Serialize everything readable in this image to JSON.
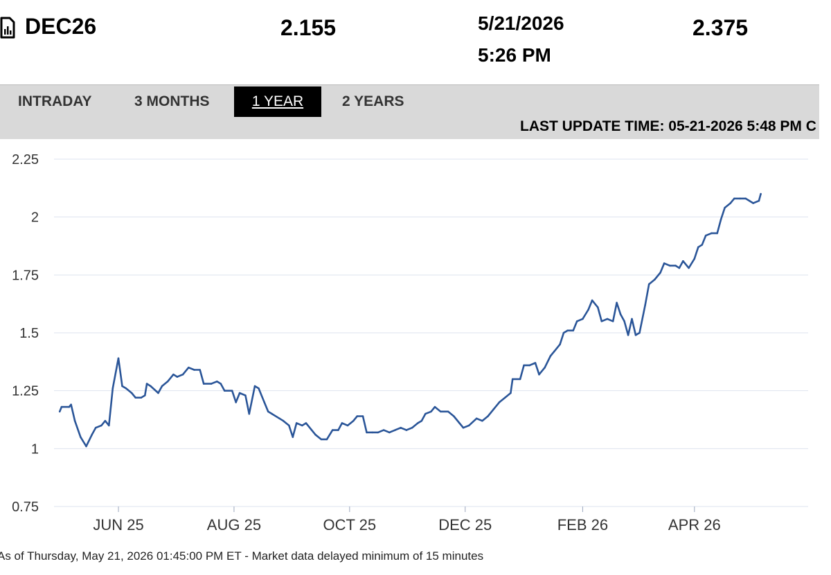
{
  "quote": {
    "symbol": "DEC26",
    "last": "2.155",
    "date": "5/21/2026",
    "time": "5:26 PM",
    "change": "2.375"
  },
  "tabs": [
    {
      "label": "INTRADAY",
      "active": false
    },
    {
      "label": "3 MONTHS",
      "active": false
    },
    {
      "label": "1 YEAR",
      "active": true
    },
    {
      "label": "2 YEARS",
      "active": false
    }
  ],
  "last_update": "LAST UPDATE TIME: 05-21-2026 5:48 PM C",
  "footnote": "As of Thursday, May 21, 2026 01:45:00 PM ET - Market data delayed minimum of 15 minutes",
  "colors": {
    "line": "#2a5598",
    "grid": "#dde3ef",
    "active_tab": "#000000",
    "tabbar": "#d9d9d9"
  },
  "chart_data": {
    "type": "line",
    "grid": true,
    "ylim": [
      0.75,
      2.25
    ],
    "yticks": [
      0.75,
      1,
      1.25,
      1.5,
      1.75,
      2,
      2.25
    ],
    "ytick_labels": [
      "0.75",
      "1",
      "1.25",
      "1.5",
      "1.75",
      "2",
      "2.25"
    ],
    "xlim": [
      "2025-04-28",
      "2026-05-31"
    ],
    "xticks": [
      "2025-06-01",
      "2025-08-01",
      "2025-10-01",
      "2025-12-01",
      "2026-02-01",
      "2026-04-01"
    ],
    "xtick_labels": [
      "JUN 25",
      "AUG 25",
      "OCT 25",
      "DEC 25",
      "FEB 26",
      "APR 26"
    ],
    "series": [
      {
        "points": [
          [
            "2025-05-01",
            1.16
          ],
          [
            "2025-05-02",
            1.18
          ],
          [
            "2025-05-06",
            1.18
          ],
          [
            "2025-05-07",
            1.19
          ],
          [
            "2025-05-09",
            1.12
          ],
          [
            "2025-05-12",
            1.05
          ],
          [
            "2025-05-15",
            1.01
          ],
          [
            "2025-05-18",
            1.06
          ],
          [
            "2025-05-20",
            1.09
          ],
          [
            "2025-05-23",
            1.1
          ],
          [
            "2025-05-25",
            1.12
          ],
          [
            "2025-05-27",
            1.1
          ],
          [
            "2025-05-29",
            1.26
          ],
          [
            "2025-06-01",
            1.39
          ],
          [
            "2025-06-03",
            1.27
          ],
          [
            "2025-06-05",
            1.26
          ],
          [
            "2025-06-08",
            1.24
          ],
          [
            "2025-06-10",
            1.22
          ],
          [
            "2025-06-13",
            1.22
          ],
          [
            "2025-06-15",
            1.23
          ],
          [
            "2025-06-16",
            1.28
          ],
          [
            "2025-06-18",
            1.27
          ],
          [
            "2025-06-22",
            1.24
          ],
          [
            "2025-06-24",
            1.27
          ],
          [
            "2025-06-27",
            1.29
          ],
          [
            "2025-06-30",
            1.32
          ],
          [
            "2025-07-02",
            1.31
          ],
          [
            "2025-07-05",
            1.32
          ],
          [
            "2025-07-08",
            1.35
          ],
          [
            "2025-07-11",
            1.34
          ],
          [
            "2025-07-14",
            1.34
          ],
          [
            "2025-07-16",
            1.28
          ],
          [
            "2025-07-20",
            1.28
          ],
          [
            "2025-07-23",
            1.29
          ],
          [
            "2025-07-25",
            1.28
          ],
          [
            "2025-07-27",
            1.25
          ],
          [
            "2025-07-31",
            1.25
          ],
          [
            "2025-08-02",
            1.2
          ],
          [
            "2025-08-04",
            1.24
          ],
          [
            "2025-08-07",
            1.23
          ],
          [
            "2025-08-09",
            1.15
          ],
          [
            "2025-08-12",
            1.27
          ],
          [
            "2025-08-14",
            1.26
          ],
          [
            "2025-08-17",
            1.2
          ],
          [
            "2025-08-19",
            1.16
          ],
          [
            "2025-08-21",
            1.15
          ],
          [
            "2025-08-25",
            1.13
          ],
          [
            "2025-08-27",
            1.12
          ],
          [
            "2025-08-30",
            1.1
          ],
          [
            "2025-09-01",
            1.05
          ],
          [
            "2025-09-03",
            1.11
          ],
          [
            "2025-09-06",
            1.1
          ],
          [
            "2025-09-08",
            1.11
          ],
          [
            "2025-09-11",
            1.08
          ],
          [
            "2025-09-13",
            1.06
          ],
          [
            "2025-09-16",
            1.04
          ],
          [
            "2025-09-19",
            1.04
          ],
          [
            "2025-09-22",
            1.08
          ],
          [
            "2025-09-25",
            1.08
          ],
          [
            "2025-09-27",
            1.11
          ],
          [
            "2025-09-30",
            1.1
          ],
          [
            "2025-10-03",
            1.12
          ],
          [
            "2025-10-05",
            1.14
          ],
          [
            "2025-10-08",
            1.14
          ],
          [
            "2025-10-10",
            1.07
          ],
          [
            "2025-10-13",
            1.07
          ],
          [
            "2025-10-16",
            1.07
          ],
          [
            "2025-10-19",
            1.08
          ],
          [
            "2025-10-22",
            1.07
          ],
          [
            "2025-10-25",
            1.08
          ],
          [
            "2025-10-28",
            1.09
          ],
          [
            "2025-10-31",
            1.08
          ],
          [
            "2025-11-03",
            1.09
          ],
          [
            "2025-11-06",
            1.11
          ],
          [
            "2025-11-08",
            1.12
          ],
          [
            "2025-11-10",
            1.15
          ],
          [
            "2025-11-13",
            1.16
          ],
          [
            "2025-11-15",
            1.18
          ],
          [
            "2025-11-18",
            1.16
          ],
          [
            "2025-11-22",
            1.16
          ],
          [
            "2025-11-25",
            1.14
          ],
          [
            "2025-11-28",
            1.11
          ],
          [
            "2025-11-30",
            1.09
          ],
          [
            "2025-12-03",
            1.1
          ],
          [
            "2025-12-07",
            1.13
          ],
          [
            "2025-12-10",
            1.12
          ],
          [
            "2025-12-13",
            1.14
          ],
          [
            "2025-12-16",
            1.17
          ],
          [
            "2025-12-19",
            1.2
          ],
          [
            "2025-12-22",
            1.22
          ],
          [
            "2025-12-25",
            1.24
          ],
          [
            "2025-12-26",
            1.3
          ],
          [
            "2025-12-30",
            1.3
          ],
          [
            "2026-01-01",
            1.36
          ],
          [
            "2026-01-04",
            1.36
          ],
          [
            "2026-01-07",
            1.37
          ],
          [
            "2026-01-09",
            1.32
          ],
          [
            "2026-01-12",
            1.35
          ],
          [
            "2026-01-15",
            1.4
          ],
          [
            "2026-01-17",
            1.42
          ],
          [
            "2026-01-20",
            1.45
          ],
          [
            "2026-01-22",
            1.5
          ],
          [
            "2026-01-24",
            1.51
          ],
          [
            "2026-01-27",
            1.51
          ],
          [
            "2026-01-29",
            1.55
          ],
          [
            "2026-02-01",
            1.56
          ],
          [
            "2026-02-04",
            1.6
          ],
          [
            "2026-02-06",
            1.64
          ],
          [
            "2026-02-09",
            1.61
          ],
          [
            "2026-02-11",
            1.55
          ],
          [
            "2026-02-14",
            1.56
          ],
          [
            "2026-02-17",
            1.55
          ],
          [
            "2026-02-19",
            1.63
          ],
          [
            "2026-02-21",
            1.58
          ],
          [
            "2026-02-23",
            1.55
          ],
          [
            "2026-02-25",
            1.49
          ],
          [
            "2026-02-27",
            1.56
          ],
          [
            "2026-03-01",
            1.49
          ],
          [
            "2026-03-03",
            1.5
          ],
          [
            "2026-03-06",
            1.62
          ],
          [
            "2026-03-08",
            1.71
          ],
          [
            "2026-03-11",
            1.73
          ],
          [
            "2026-03-14",
            1.76
          ],
          [
            "2026-03-16",
            1.8
          ],
          [
            "2026-03-19",
            1.79
          ],
          [
            "2026-03-22",
            1.79
          ],
          [
            "2026-03-24",
            1.78
          ],
          [
            "2026-03-26",
            1.81
          ],
          [
            "2026-03-29",
            1.78
          ],
          [
            "2026-04-01",
            1.82
          ],
          [
            "2026-04-03",
            1.87
          ],
          [
            "2026-04-05",
            1.88
          ],
          [
            "2026-04-07",
            1.92
          ],
          [
            "2026-04-10",
            1.93
          ],
          [
            "2026-04-13",
            1.93
          ],
          [
            "2026-04-15",
            1.99
          ],
          [
            "2026-04-17",
            2.04
          ],
          [
            "2026-04-20",
            2.06
          ],
          [
            "2026-04-22",
            2.08
          ],
          [
            "2026-04-25",
            2.08
          ],
          [
            "2026-04-28",
            2.08
          ],
          [
            "2026-04-30",
            2.07
          ],
          [
            "2026-05-02",
            2.06
          ],
          [
            "2026-05-05",
            2.07
          ],
          [
            "2026-05-06",
            2.1
          ]
        ]
      }
    ]
  }
}
